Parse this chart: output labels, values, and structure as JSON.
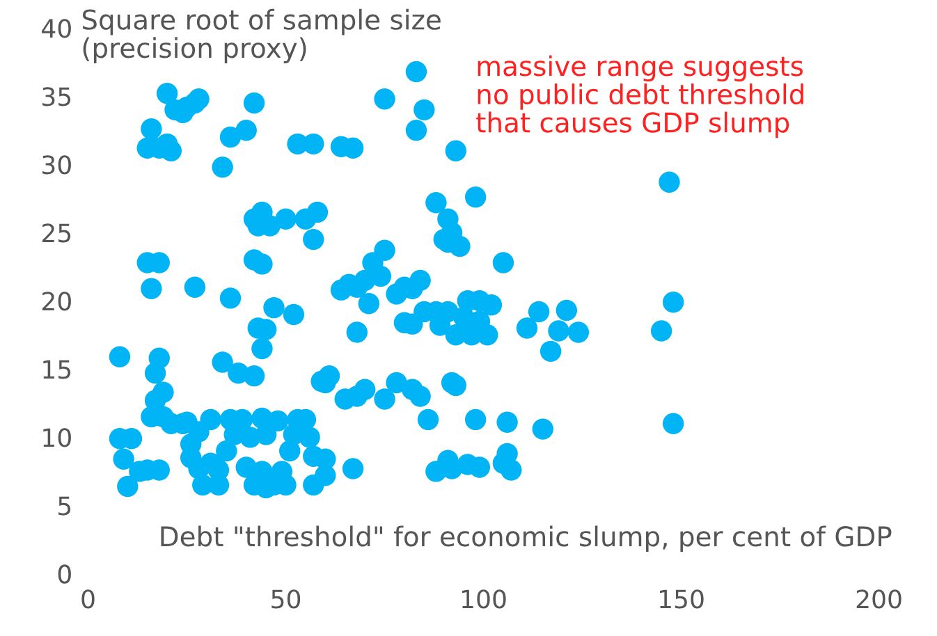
{
  "chart_data": {
    "type": "scatter",
    "xlabel": "Debt \"threshold\" for economic slump, per cent of GDP",
    "ylabel": "Square root of sample size\n(precision proxy)",
    "annotations": [
      "massive range suggests\nno public debt threshold\nthat causes GDP slump"
    ],
    "xlim": [
      0,
      200
    ],
    "ylim": [
      0,
      40
    ],
    "xticks": [
      0,
      50,
      100,
      150,
      200
    ],
    "yticks": [
      0,
      5,
      10,
      15,
      20,
      25,
      30,
      35,
      40
    ],
    "grid": false,
    "marker": "circle",
    "series": [
      {
        "color": "#00b4f5",
        "x": [
          20,
          22,
          25,
          27,
          28,
          24,
          16,
          15,
          18,
          20,
          21,
          36,
          40,
          42,
          34,
          53,
          57,
          64,
          67,
          75,
          83,
          85,
          83,
          93,
          147,
          15,
          18,
          16,
          27,
          36,
          42,
          44,
          43,
          46,
          50,
          55,
          58,
          57,
          42,
          44,
          47,
          43,
          44,
          42,
          38,
          34,
          31,
          88,
          91,
          92,
          90,
          94,
          91,
          98,
          105,
          75,
          72,
          70,
          66,
          68,
          64,
          80,
          84,
          82,
          78,
          74,
          71,
          85,
          88,
          91,
          95,
          96,
          99,
          102,
          99,
          97,
          101,
          93,
          82,
          80,
          89,
          68,
          111,
          114,
          121,
          119,
          124,
          117,
          145,
          148,
          148,
          78,
          82,
          92,
          93,
          52,
          45,
          59,
          60,
          61,
          65,
          70,
          68,
          75,
          86,
          98,
          106,
          115,
          99,
          105,
          106,
          107,
          92,
          88,
          91,
          96,
          84,
          67,
          60,
          8,
          8,
          9,
          11,
          13,
          10,
          15,
          18,
          19,
          21,
          24,
          26,
          25,
          28,
          26,
          28,
          29,
          31,
          33,
          33,
          35,
          37,
          36,
          39,
          41,
          40,
          42,
          44,
          45,
          47,
          49,
          50,
          51,
          52,
          53,
          55,
          56,
          57,
          60,
          57,
          48,
          44,
          45,
          16,
          17,
          18,
          19,
          17
        ],
        "values": [
          35.2,
          34,
          34.2,
          34.5,
          34.8,
          33.8,
          32.6,
          31.2,
          31.2,
          31.5,
          31,
          32,
          32.5,
          34.5,
          29.8,
          31.5,
          31.5,
          31.3,
          31.2,
          34.8,
          36.8,
          34,
          32.5,
          31,
          28.7,
          22.8,
          22.8,
          20.9,
          21,
          20.2,
          26,
          26.5,
          25.5,
          25.5,
          26,
          26,
          26.5,
          24.5,
          23,
          22.7,
          19.5,
          18,
          16.5,
          14.5,
          14.7,
          15.5,
          11.3,
          27.2,
          26,
          25,
          24.5,
          24,
          24.3,
          27.6,
          22.8,
          23.7,
          22.8,
          21.5,
          21.2,
          21,
          20.8,
          21,
          21.5,
          20.9,
          20.5,
          21.8,
          19.8,
          19.2,
          19.2,
          19.2,
          18.8,
          20,
          20,
          19.7,
          18.5,
          17.5,
          17.5,
          17.5,
          18.3,
          18.4,
          18.2,
          17.7,
          18,
          19.2,
          19.3,
          17.8,
          17.7,
          16.3,
          17.8,
          19.9,
          11,
          14,
          13.5,
          14,
          13.8,
          19,
          17.9,
          14.1,
          14,
          14.5,
          12.8,
          13.5,
          13,
          12.8,
          11.3,
          11.3,
          11.1,
          10.6,
          7.8,
          8.1,
          8.8,
          7.6,
          7.7,
          7.5,
          8.3,
          8,
          13,
          7.7,
          7.2,
          15.9,
          9.9,
          8.4,
          9.9,
          7.5,
          6.4,
          7.6,
          7.6,
          11.5,
          11,
          11,
          9.5,
          11.1,
          10.4,
          8.5,
          7.7,
          6.5,
          8.1,
          7.6,
          6.5,
          9,
          10.2,
          11.3,
          11.3,
          10,
          7.8,
          6.5,
          7.5,
          6.3,
          6.5,
          7.5,
          6.5,
          9,
          10.2,
          11.3,
          11.3,
          10,
          8.6,
          8.4,
          6.5,
          11.2,
          11.4,
          10.2,
          11.5,
          14.7,
          15.8,
          13.3,
          12.7
        ]
      }
    ]
  }
}
